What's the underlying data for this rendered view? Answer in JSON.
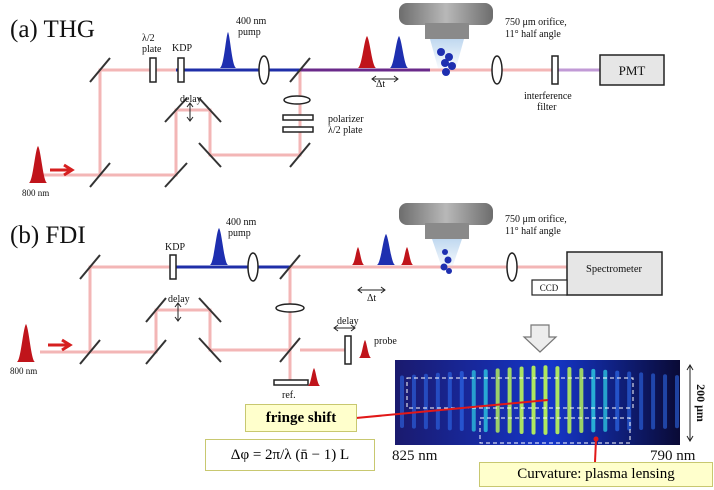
{
  "panel_a": {
    "title": "(a) THG",
    "half_wave_plate_1": "λ/2",
    "half_wave_plate_2": "plate",
    "kdp": "KDP",
    "pump_1": "400 nm",
    "pump_2": "pump",
    "orifice_1": "750 μm orifice,",
    "orifice_2": "11° half angle",
    "detector": "PMT",
    "delay": "delay",
    "delta_t": "Δt",
    "polarizer_1": "polarizer",
    "polarizer_2": "λ/2 plate",
    "filter_1": "interference",
    "filter_2": "filter",
    "source": "800 nm"
  },
  "panel_b": {
    "title": "(b) FDI",
    "kdp": "KDP",
    "pump_1": "400 nm",
    "pump_2": "pump",
    "orifice_1": "750 μm orifice,",
    "orifice_2": "11° half angle",
    "spectrometer": "Spectrometer",
    "ccd": "CCD",
    "delay_main": "delay",
    "delay_probe": "delay",
    "probe": "probe",
    "delta_t": "Δt",
    "ref": "ref.",
    "source": "800 nm"
  },
  "interferogram": {
    "axis_left": "825 nm",
    "axis_right": "790 nm",
    "scale": "200 μm",
    "fringe_shift": "fringe shift",
    "formula": "Δφ = 2π/λ (n̄ − 1) L",
    "curvature": "Curvature: plasma lensing"
  },
  "colors": {
    "ir_beam": "#f3b6b6",
    "blue_beam": "#1f2fa8",
    "mixed_beam": "#6a2a8a",
    "red_pulse": "#c0141b",
    "blue_pulse": "#1e2fb0",
    "violet_beam": "#c19ad6"
  }
}
